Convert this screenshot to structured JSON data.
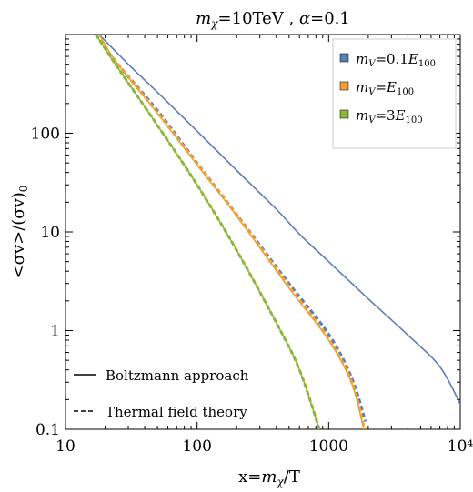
{
  "chart_data": {
    "type": "line",
    "title": "m_χ=10TeV , α=0.1",
    "xlabel": "x=m_χ/T",
    "ylabel": "<σv>/(σv)_0",
    "xscale": "log",
    "yscale": "log",
    "xlim": [
      10,
      10000
    ],
    "ylim": [
      0.1,
      1000
    ],
    "x_ticks": [
      {
        "value": 10,
        "label": "10"
      },
      {
        "value": 100,
        "label": "100"
      },
      {
        "value": 1000,
        "label": "1000"
      },
      {
        "value": 10000,
        "label": "10⁴"
      }
    ],
    "y_ticks": [
      {
        "value": 0.1,
        "label": "0.1"
      },
      {
        "value": 1,
        "label": "1"
      },
      {
        "value": 10,
        "label": "10"
      },
      {
        "value": 100,
        "label": "100"
      }
    ],
    "series": [
      {
        "name": "m_V=0.1E_100",
        "color": "#5B7DB8",
        "style": "solid",
        "points": [
          [
            18,
            1000
          ],
          [
            30,
            500
          ],
          [
            50,
            260
          ],
          [
            100,
            105
          ],
          [
            200,
            42
          ],
          [
            400,
            17
          ],
          [
            600,
            9.5
          ],
          [
            1000,
            5
          ],
          [
            2000,
            2.1
          ],
          [
            4000,
            0.9
          ],
          [
            7000,
            0.43
          ],
          [
            10000,
            0.18
          ]
        ]
      },
      {
        "name": "",
        "color": "#5B7DB8",
        "style": "dashed",
        "points": [
          [
            17,
            1000
          ],
          [
            25,
            500
          ],
          [
            50,
            170
          ],
          [
            100,
            50
          ],
          [
            200,
            15
          ],
          [
            500,
            3
          ],
          [
            1000,
            0.92
          ],
          [
            1500,
            0.33
          ],
          [
            1900,
            0.12
          ]
        ]
      },
      {
        "name": "m_V=E_100",
        "color": "#F0A030",
        "style": "solid",
        "points": [
          [
            18,
            1000
          ],
          [
            25,
            500
          ],
          [
            50,
            160
          ],
          [
            100,
            48
          ],
          [
            200,
            14.5
          ],
          [
            500,
            2.7
          ],
          [
            1000,
            0.8
          ],
          [
            1500,
            0.29
          ],
          [
            1850,
            0.1
          ]
        ]
      },
      {
        "name": "",
        "color": "#F0A030",
        "style": "dashed",
        "points": [
          [
            17,
            1000
          ],
          [
            25,
            500
          ],
          [
            50,
            162
          ],
          [
            100,
            49
          ],
          [
            200,
            14.8
          ],
          [
            500,
            2.8
          ],
          [
            1000,
            0.82
          ],
          [
            1500,
            0.3
          ],
          [
            1870,
            0.1
          ]
        ]
      },
      {
        "name": "m_V=3E_100",
        "color": "#8DB63C",
        "style": "solid",
        "points": [
          [
            17,
            1000
          ],
          [
            25,
            460
          ],
          [
            50,
            120
          ],
          [
            100,
            30
          ],
          [
            200,
            6.5
          ],
          [
            400,
            1.2
          ],
          [
            600,
            0.4
          ],
          [
            850,
            0.1
          ]
        ]
      },
      {
        "name": "",
        "color": "#8DB63C",
        "style": "dashed",
        "points": [
          [
            17,
            1000
          ],
          [
            25,
            460
          ],
          [
            50,
            120
          ],
          [
            100,
            30
          ],
          [
            200,
            6.5
          ],
          [
            400,
            1.2
          ],
          [
            600,
            0.4
          ],
          [
            850,
            0.1
          ]
        ]
      }
    ],
    "legend": {
      "placement": "top-right",
      "entries": [
        {
          "label": "m_V=0.1E_100",
          "color": "#5B7DB8"
        },
        {
          "label": "m_V=E_100",
          "color": "#F0A030"
        },
        {
          "label": "m_V=3E_100",
          "color": "#8DB63C"
        }
      ]
    },
    "line_style_legend": {
      "placement": "bottom-left",
      "entries": [
        {
          "label": "Boltzmann approach",
          "style": "solid"
        },
        {
          "label": "Thermal field theory",
          "style": "dashed"
        }
      ]
    },
    "grid": false
  }
}
